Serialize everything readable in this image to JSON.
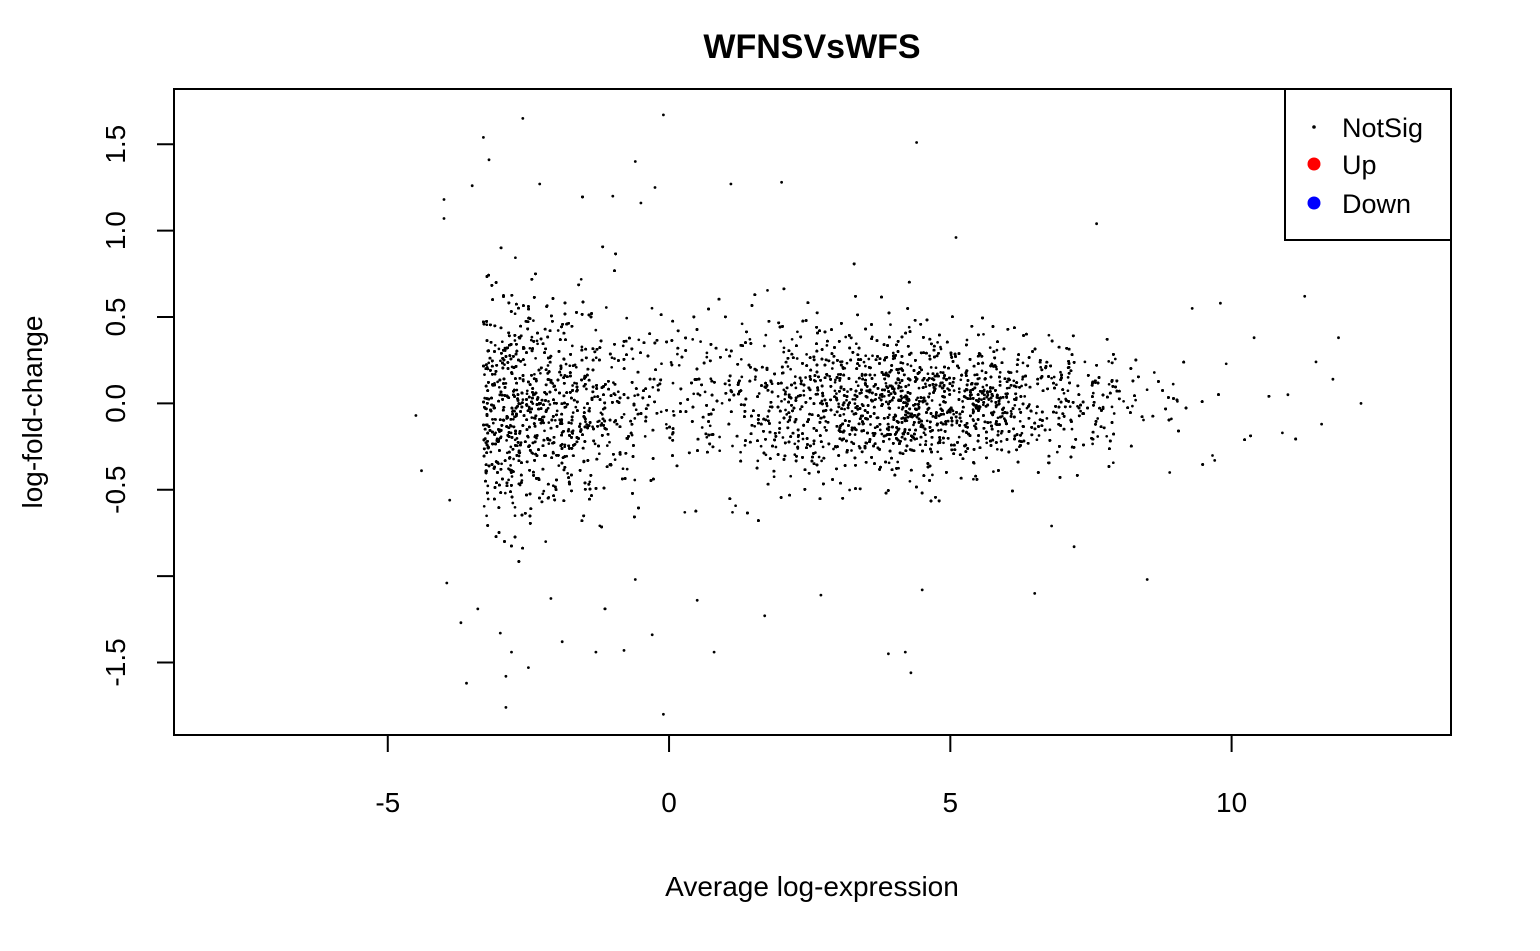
{
  "chart_data": {
    "type": "scatter",
    "title": "WFNSVsWFS",
    "xlabel": "Average log-expression",
    "ylabel": "log-fold-change",
    "xlim": [
      -8.8,
      13.9
    ],
    "ylim": [
      -1.92,
      1.82
    ],
    "x_ticks": [
      -5,
      0,
      5,
      10
    ],
    "x_tick_labels": [
      "-5",
      "0",
      "5",
      "10"
    ],
    "y_ticks": [
      -1.5,
      -1.0,
      -0.5,
      0.0,
      0.5,
      1.0,
      1.5
    ],
    "y_tick_labels": [
      "-1.5",
      "",
      "-0.5",
      "0.0",
      "0.5",
      "1.0",
      "1.5"
    ],
    "grid": false,
    "legend_position": "top-right",
    "series": [
      {
        "name": "NotSig",
        "color": "#000000",
        "marker": "small-dot",
        "description": "dense point cloud, ~15000 genes",
        "points": [
          [
            -4.5,
            -0.07
          ],
          [
            -4.4,
            -0.39
          ],
          [
            -4.0,
            1.18
          ],
          [
            -4.0,
            1.07
          ],
          [
            -3.9,
            -0.56
          ],
          [
            -3.95,
            -1.04
          ],
          [
            -3.7,
            -1.27
          ],
          [
            -3.6,
            -1.62
          ],
          [
            -3.5,
            1.26
          ],
          [
            -3.4,
            -1.19
          ],
          [
            -3.3,
            1.54
          ],
          [
            -3.2,
            1.41
          ],
          [
            -3.0,
            -1.33
          ],
          [
            -2.9,
            -1.76
          ],
          [
            -2.9,
            -1.58
          ],
          [
            -2.8,
            -1.44
          ],
          [
            -2.6,
            1.65
          ],
          [
            -2.5,
            -1.53
          ],
          [
            -2.3,
            1.27
          ],
          [
            -2.1,
            -1.13
          ],
          [
            -1.9,
            -1.38
          ],
          [
            -1.3,
            -1.44
          ],
          [
            -1.0,
            1.2
          ],
          [
            -0.8,
            -1.43
          ],
          [
            -0.6,
            1.4
          ],
          [
            -0.5,
            1.16
          ],
          [
            -0.3,
            -1.34
          ],
          [
            -0.25,
            1.25
          ],
          [
            -0.1,
            1.67
          ],
          [
            -0.1,
            -1.8
          ],
          [
            0.5,
            -1.14
          ],
          [
            0.8,
            -1.44
          ],
          [
            1.1,
            1.27
          ],
          [
            1.7,
            -1.23
          ],
          [
            2.0,
            1.28
          ],
          [
            2.7,
            -1.11
          ],
          [
            4.2,
            -1.44
          ],
          [
            4.3,
            -1.56
          ],
          [
            4.4,
            1.51
          ],
          [
            5.1,
            0.96
          ],
          [
            6.5,
            -1.1
          ],
          [
            7.6,
            1.04
          ],
          [
            8.5,
            -1.02
          ],
          [
            9.3,
            0.55
          ],
          [
            9.8,
            0.58
          ],
          [
            10.4,
            0.38
          ],
          [
            11.3,
            0.62
          ],
          [
            11.9,
            0.38
          ],
          [
            11.6,
            -0.12
          ],
          [
            12.3,
            0.0
          ],
          [
            11.0,
            0.05
          ],
          [
            11.5,
            0.24
          ],
          [
            11.8,
            0.14
          ],
          [
            9.7,
            -0.33
          ],
          [
            8.9,
            -0.4
          ],
          [
            7.2,
            -0.83
          ],
          [
            6.8,
            -0.71
          ],
          [
            3.9,
            -1.45
          ],
          [
            4.5,
            -1.08
          ],
          [
            -0.6,
            -1.02
          ]
        ]
      },
      {
        "name": "Up",
        "color": "#ff0000",
        "marker": "dot",
        "points": []
      },
      {
        "name": "Down",
        "color": "#0000ff",
        "marker": "dot",
        "points": []
      }
    ]
  }
}
